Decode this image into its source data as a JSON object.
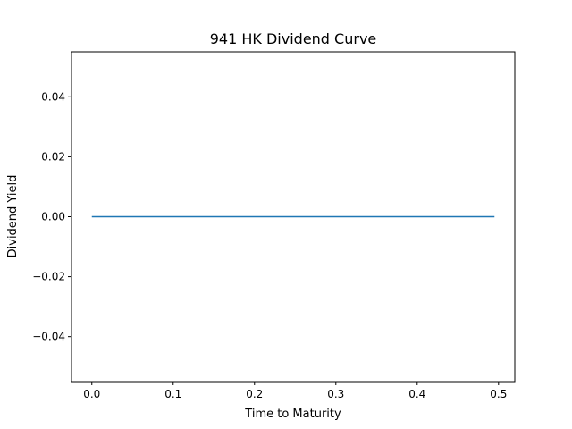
{
  "chart_data": {
    "type": "line",
    "title": "941 HK Dividend Curve",
    "xlabel": "Time to Maturity",
    "ylabel": "Dividend Yield",
    "xlim": [
      -0.025,
      0.52
    ],
    "ylim": [
      -0.055,
      0.055
    ],
    "xticks": [
      0.0,
      0.1,
      0.2,
      0.3,
      0.4,
      0.5
    ],
    "xtick_labels": [
      "0.0",
      "0.1",
      "0.2",
      "0.3",
      "0.4",
      "0.5"
    ],
    "yticks": [
      -0.04,
      -0.02,
      0.0,
      0.02,
      0.04
    ],
    "ytick_labels": [
      "−0.04",
      "−0.02",
      "0.00",
      "0.02",
      "0.04"
    ],
    "grid": false,
    "series": [
      {
        "color": "#1f77b4",
        "x": [
          0.0,
          0.1,
          0.2,
          0.3,
          0.4,
          0.495
        ],
        "y": [
          0.0,
          0.0,
          0.0,
          0.0,
          0.0,
          0.0
        ]
      }
    ]
  }
}
